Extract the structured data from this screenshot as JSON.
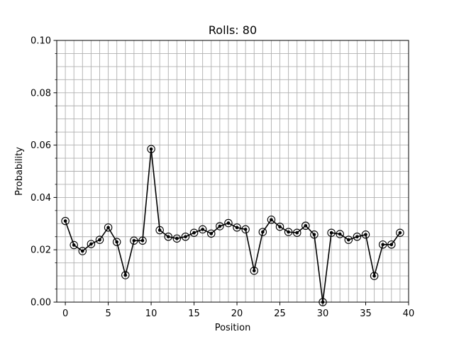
{
  "chart_data": {
    "type": "line",
    "title": "Rolls: 80",
    "xlabel": "Position",
    "ylabel": "Probability",
    "xlim": [
      -1,
      40
    ],
    "ylim": [
      0,
      0.1
    ],
    "xticks": [
      0,
      5,
      10,
      15,
      20,
      25,
      30,
      35,
      40
    ],
    "xtick_labels": [
      "0",
      "5",
      "10",
      "15",
      "20",
      "25",
      "30",
      "35",
      "40"
    ],
    "yticks": [
      0,
      0.02,
      0.04,
      0.06,
      0.08,
      0.1
    ],
    "ytick_labels": [
      "0.00",
      "0.02",
      "0.04",
      "0.06",
      "0.08",
      "0.10"
    ],
    "grid": true,
    "minor_grid": true,
    "line_color": "#000000",
    "series": [
      {
        "x": [
          0,
          1,
          2,
          3,
          4,
          5,
          6,
          7,
          8,
          9,
          10,
          11,
          12,
          13,
          14,
          15,
          16,
          17,
          18,
          19,
          20,
          21,
          22,
          23,
          24,
          25,
          26,
          27,
          28,
          29,
          30,
          31,
          32,
          33,
          34,
          35,
          36,
          37,
          38,
          39
        ],
        "values": [
          0.031,
          0.0218,
          0.0195,
          0.0222,
          0.0238,
          0.0285,
          0.023,
          0.0103,
          0.0235,
          0.0235,
          0.0585,
          0.0275,
          0.025,
          0.0243,
          0.025,
          0.0265,
          0.0278,
          0.0262,
          0.029,
          0.0302,
          0.0285,
          0.0278,
          0.012,
          0.0268,
          0.0315,
          0.0288,
          0.0268,
          0.0265,
          0.0292,
          0.0258,
          0.0,
          0.0265,
          0.026,
          0.0238,
          0.025,
          0.0258,
          0.01,
          0.022,
          0.022,
          0.0265
        ]
      }
    ]
  }
}
